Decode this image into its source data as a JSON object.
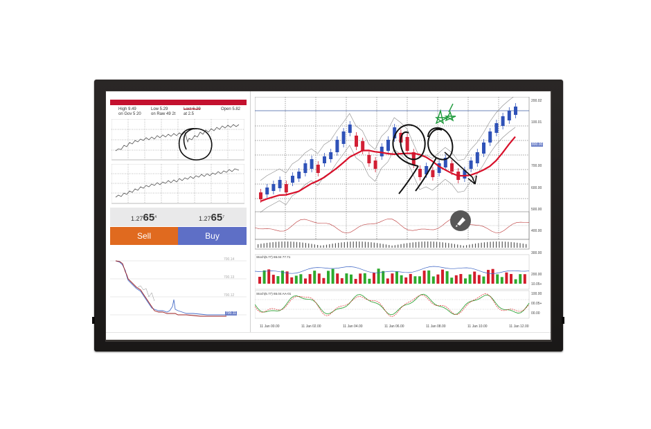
{
  "stats": {
    "high": "High 9.49",
    "gov": "on Gov 5 20",
    "low": "Low 5.29",
    "raw": "on Raw 49 2t",
    "last": "Last 6.29",
    "last_sub": "at 2.5",
    "open": "Open 5.82"
  },
  "quote": {
    "sell_prefix": "1.27",
    "sell_big": "65",
    "sell_sup": "4",
    "buy_prefix": "1.27",
    "buy_big": "65",
    "buy_sup": "7",
    "sell_label": "Sell",
    "buy_label": "Buy"
  },
  "small_chart": {
    "y_labels": [
      "700.14",
      "700.13",
      "700.12",
      "700.11"
    ]
  },
  "main_chart": {
    "price_axis": [
      "200.02",
      "100.01",
      "800.00",
      "700.00",
      "600.00",
      "500.00",
      "400.00",
      "300.00"
    ],
    "osc_axis": [
      "200.00",
      "10.05+",
      "100.00",
      "00.05+",
      "00.00"
    ],
    "stoch_label_1": "Stoch(5.77) 65.04 77.71",
    "stoch_label_2": "Stoch(5.77) 65.04 AA-01",
    "time_labels": [
      "11 Jan 00.00",
      "11 Jan 02.00",
      "11 Jan 04.00",
      "11 Jan 06.00",
      "11 Jan 08.00",
      "11 Jan 10.00",
      "11 Jan 12.00"
    ]
  },
  "colors": {
    "bull": "#2f52b8",
    "bear": "#d21f34",
    "ma": "#d8102a",
    "sell": "#e06a1f",
    "buy": "#5e6fc6"
  },
  "icons": {
    "marker": "marker-pen-icon"
  }
}
